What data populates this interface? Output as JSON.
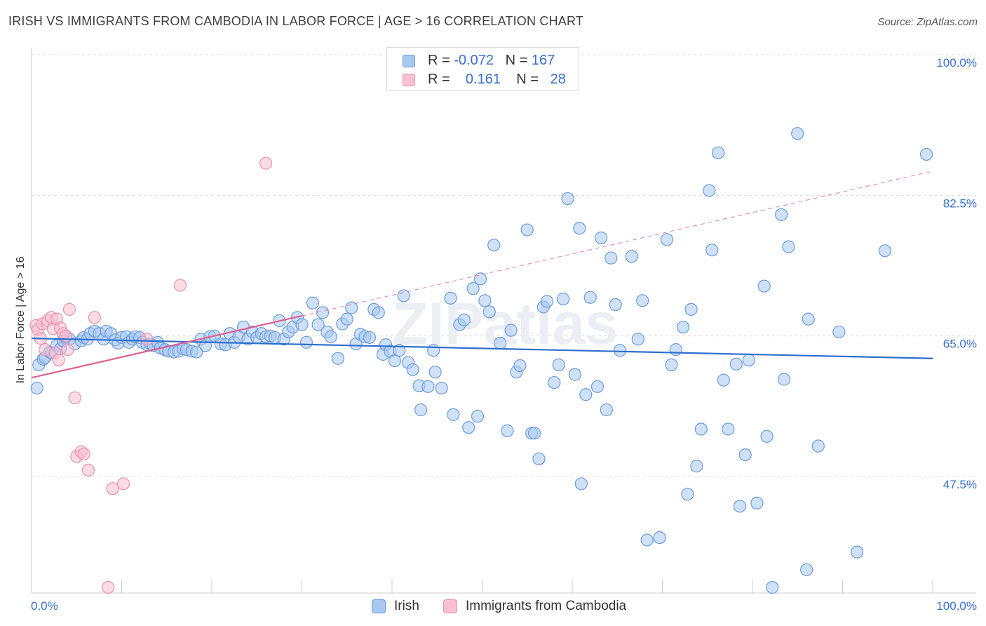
{
  "title": "IRISH VS IMMIGRANTS FROM CAMBODIA IN LABOR FORCE | AGE > 16 CORRELATION CHART",
  "source": "Source: ZipAtlas.com",
  "watermark": "ZIPatlas",
  "legend_top": {
    "rows": [
      {
        "r_label": "R = ",
        "r_value": "-0.072",
        "n_label": "N = ",
        "n_value": "167"
      },
      {
        "r_label": "R = ",
        "r_value": "0.161",
        "n_label": "N = ",
        "n_value": "28"
      }
    ]
  },
  "legend_bottom": {
    "items": [
      "Irish",
      "Immigrants from Cambodia"
    ]
  },
  "colors": {
    "irish_fill": "#a9c8f0",
    "irish_stroke": "#6a9be0",
    "irish_line": "#2f6fcf",
    "cambodia_fill": "#f8c0d0",
    "cambodia_stroke": "#ec8fae",
    "cambodia_line": "#e0608e",
    "axis_label": "#3a6fd0",
    "grid": "#dcdcdc"
  },
  "chart_data": {
    "type": "scatter",
    "xlabel": "",
    "ylabel": "In Labor Force | Age > 16",
    "xlim": [
      0,
      100
    ],
    "ylim": [
      33,
      100
    ],
    "x_tick_labels": [
      {
        "value": 0,
        "label": "0.0%"
      },
      {
        "value": 100,
        "label": "100.0%"
      }
    ],
    "y_tick_labels": [
      {
        "value": 100,
        "label": "100.0%"
      },
      {
        "value": 82.5,
        "label": "82.5%"
      },
      {
        "value": 65,
        "label": "65.0%"
      },
      {
        "value": 47.5,
        "label": "47.5%"
      }
    ],
    "grid": true,
    "series": [
      {
        "name": "Irish",
        "points": [
          [
            0.6,
            58.5
          ],
          [
            0.8,
            61.4
          ],
          [
            1.3,
            62.1
          ],
          [
            1.5,
            62.3
          ],
          [
            2.0,
            63.0
          ],
          [
            2.2,
            62.9
          ],
          [
            2.8,
            63.8
          ],
          [
            3.2,
            63.4
          ],
          [
            3.5,
            64.4
          ],
          [
            3.8,
            64.9
          ],
          [
            4.2,
            64.6
          ],
          [
            4.8,
            64.0
          ],
          [
            5.5,
            64.4
          ],
          [
            5.8,
            64.8
          ],
          [
            6.2,
            64.6
          ],
          [
            6.5,
            65.3
          ],
          [
            7.0,
            65.6
          ],
          [
            7.5,
            65.3
          ],
          [
            8.0,
            64.6
          ],
          [
            8.3,
            65.6
          ],
          [
            8.8,
            65.3
          ],
          [
            9.3,
            64.5
          ],
          [
            9.6,
            64.1
          ],
          [
            10.0,
            64.8
          ],
          [
            10.5,
            64.9
          ],
          [
            10.8,
            64.2
          ],
          [
            11.2,
            64.6
          ],
          [
            11.5,
            64.9
          ],
          [
            12.0,
            64.8
          ],
          [
            12.3,
            64.2
          ],
          [
            12.8,
            63.9
          ],
          [
            13.2,
            64.0
          ],
          [
            13.5,
            63.8
          ],
          [
            14.0,
            64.2
          ],
          [
            14.3,
            63.5
          ],
          [
            14.8,
            63.3
          ],
          [
            15.2,
            63.1
          ],
          [
            15.8,
            63.0
          ],
          [
            16.3,
            63.1
          ],
          [
            16.8,
            63.4
          ],
          [
            17.2,
            63.3
          ],
          [
            17.8,
            63.1
          ],
          [
            18.3,
            63.0
          ],
          [
            18.8,
            64.6
          ],
          [
            19.3,
            63.8
          ],
          [
            19.8,
            64.9
          ],
          [
            20.3,
            65.0
          ],
          [
            21.0,
            64.0
          ],
          [
            21.5,
            63.9
          ],
          [
            22.0,
            65.3
          ],
          [
            22.5,
            64.2
          ],
          [
            23.0,
            64.9
          ],
          [
            23.5,
            66.1
          ],
          [
            24.0,
            64.6
          ],
          [
            24.5,
            65.5
          ],
          [
            25.0,
            64.8
          ],
          [
            25.5,
            65.3
          ],
          [
            26.0,
            64.9
          ],
          [
            26.5,
            65.0
          ],
          [
            27.0,
            64.8
          ],
          [
            27.5,
            66.9
          ],
          [
            28.0,
            64.6
          ],
          [
            28.5,
            65.5
          ],
          [
            29.0,
            66.1
          ],
          [
            29.5,
            67.3
          ],
          [
            30.0,
            66.4
          ],
          [
            30.5,
            64.2
          ],
          [
            31.2,
            69.1
          ],
          [
            31.8,
            66.4
          ],
          [
            32.3,
            67.9
          ],
          [
            32.8,
            65.5
          ],
          [
            33.2,
            64.9
          ],
          [
            34.0,
            62.2
          ],
          [
            34.5,
            66.5
          ],
          [
            35.0,
            67.1
          ],
          [
            35.5,
            68.5
          ],
          [
            36.0,
            64.0
          ],
          [
            36.5,
            65.2
          ],
          [
            37.0,
            64.9
          ],
          [
            37.5,
            64.8
          ],
          [
            38.0,
            68.3
          ],
          [
            38.5,
            67.9
          ],
          [
            39.0,
            62.7
          ],
          [
            39.3,
            63.9
          ],
          [
            39.8,
            63.1
          ],
          [
            40.3,
            61.9
          ],
          [
            40.8,
            63.2
          ],
          [
            41.3,
            70.0
          ],
          [
            41.8,
            61.7
          ],
          [
            42.3,
            60.8
          ],
          [
            43.0,
            58.8
          ],
          [
            43.2,
            55.8
          ],
          [
            44.0,
            58.7
          ],
          [
            44.6,
            63.2
          ],
          [
            44.8,
            60.5
          ],
          [
            45.5,
            58.5
          ],
          [
            46.5,
            69.7
          ],
          [
            46.8,
            55.2
          ],
          [
            47.5,
            66.4
          ],
          [
            48.0,
            67.0
          ],
          [
            48.5,
            53.6
          ],
          [
            49.0,
            70.9
          ],
          [
            49.5,
            55.0
          ],
          [
            49.8,
            72.1
          ],
          [
            50.3,
            69.4
          ],
          [
            50.8,
            68.0
          ],
          [
            51.3,
            76.3
          ],
          [
            52.0,
            64.1
          ],
          [
            52.8,
            53.2
          ],
          [
            53.2,
            65.7
          ],
          [
            53.8,
            60.5
          ],
          [
            54.2,
            61.3
          ],
          [
            55.0,
            78.2
          ],
          [
            55.5,
            52.9
          ],
          [
            55.8,
            52.9
          ],
          [
            56.3,
            49.7
          ],
          [
            56.8,
            68.6
          ],
          [
            57.2,
            69.3
          ],
          [
            58.0,
            59.2
          ],
          [
            58.5,
            61.4
          ],
          [
            59.0,
            69.6
          ],
          [
            59.5,
            82.1
          ],
          [
            60.3,
            60.2
          ],
          [
            60.8,
            78.4
          ],
          [
            61.0,
            46.6
          ],
          [
            61.5,
            57.7
          ],
          [
            62.0,
            69.8
          ],
          [
            62.8,
            58.7
          ],
          [
            63.2,
            77.2
          ],
          [
            63.8,
            55.8
          ],
          [
            64.3,
            74.7
          ],
          [
            64.8,
            68.9
          ],
          [
            65.3,
            63.2
          ],
          [
            66.6,
            74.9
          ],
          [
            67.3,
            64.6
          ],
          [
            67.8,
            69.4
          ],
          [
            68.3,
            39.6
          ],
          [
            69.7,
            39.9
          ],
          [
            70.5,
            77.0
          ],
          [
            71.0,
            61.4
          ],
          [
            71.5,
            63.3
          ],
          [
            72.3,
            66.1
          ],
          [
            72.8,
            45.3
          ],
          [
            73.2,
            68.3
          ],
          [
            73.8,
            48.8
          ],
          [
            74.3,
            53.4
          ],
          [
            75.2,
            83.1
          ],
          [
            75.5,
            75.7
          ],
          [
            76.2,
            87.8
          ],
          [
            76.8,
            59.5
          ],
          [
            77.3,
            53.4
          ],
          [
            78.2,
            61.5
          ],
          [
            78.6,
            43.8
          ],
          [
            79.2,
            50.2
          ],
          [
            79.6,
            62.0
          ],
          [
            80.5,
            44.2
          ],
          [
            81.3,
            71.2
          ],
          [
            81.6,
            52.5
          ],
          [
            82.2,
            33.7
          ],
          [
            83.2,
            80.1
          ],
          [
            83.5,
            59.6
          ],
          [
            84.0,
            76.1
          ],
          [
            85.0,
            90.2
          ],
          [
            86.0,
            35.9
          ],
          [
            86.2,
            67.1
          ],
          [
            87.3,
            51.3
          ],
          [
            89.6,
            65.5
          ],
          [
            91.6,
            38.1
          ],
          [
            94.7,
            75.6
          ],
          [
            99.3,
            87.6
          ]
        ],
        "trend": {
          "x": [
            0,
            100
          ],
          "y": [
            64.7,
            62.2
          ]
        }
      },
      {
        "name": "Immigrants from Cambodia",
        "points": [
          [
            0.5,
            66.3
          ],
          [
            0.7,
            65.8
          ],
          [
            1.0,
            64.7
          ],
          [
            1.2,
            66.5
          ],
          [
            1.5,
            63.3
          ],
          [
            1.8,
            66.9
          ],
          [
            2.2,
            67.3
          ],
          [
            2.4,
            65.9
          ],
          [
            2.6,
            62.9
          ],
          [
            2.8,
            67.1
          ],
          [
            3.0,
            62.0
          ],
          [
            3.2,
            66.0
          ],
          [
            3.5,
            65.3
          ],
          [
            3.8,
            65.0
          ],
          [
            4.0,
            63.3
          ],
          [
            4.2,
            68.3
          ],
          [
            4.8,
            57.3
          ],
          [
            5.0,
            50.0
          ],
          [
            5.5,
            50.6
          ],
          [
            5.8,
            50.3
          ],
          [
            6.3,
            48.3
          ],
          [
            7.0,
            67.3
          ],
          [
            8.5,
            33.7
          ],
          [
            9.0,
            46.0
          ],
          [
            10.2,
            46.6
          ],
          [
            12.8,
            64.6
          ],
          [
            16.5,
            71.3
          ],
          [
            26.0,
            86.5
          ]
        ],
        "trend": {
          "x": [
            0,
            30
          ],
          "y": [
            59.8,
            67.5
          ]
        },
        "trend_extension": {
          "x": [
            30,
            100
          ],
          "y": [
            67.5,
            85.5
          ]
        }
      }
    ]
  }
}
